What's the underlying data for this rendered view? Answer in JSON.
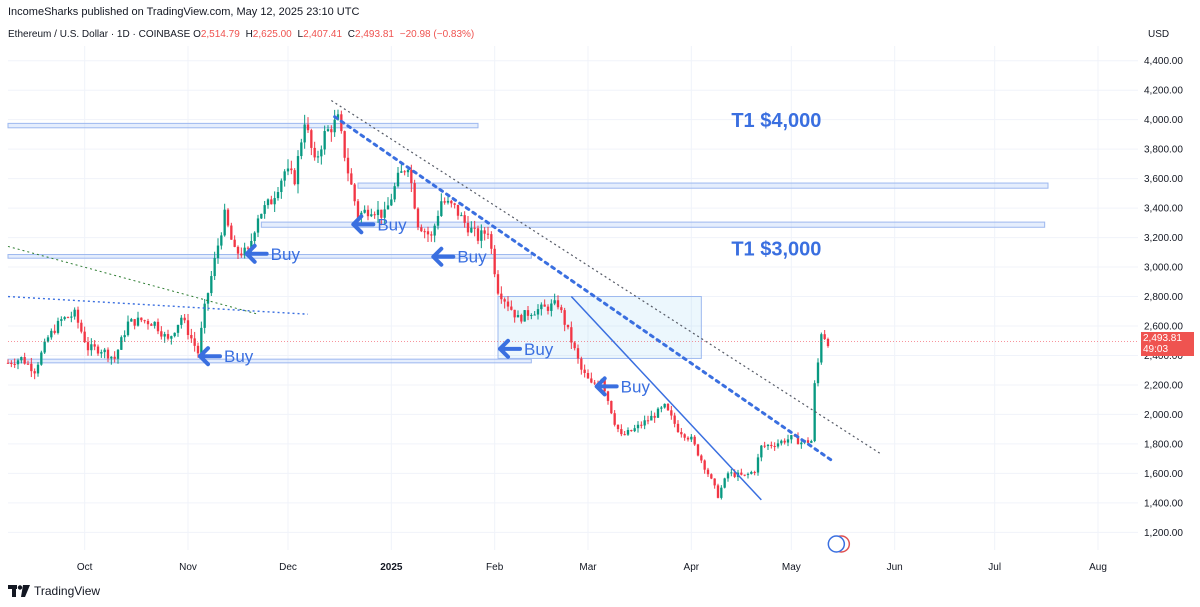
{
  "publisher": "IncomeSharks published on TradingView.com, May 12, 2025 23:10 UTC",
  "legend": {
    "symbol": "Ethereum / U.S. Dollar · 1D · COINBASE",
    "o_label": "O",
    "o": "2,514.79",
    "h_label": "H",
    "h": "2,625.00",
    "l_label": "L",
    "l": "2,407.41",
    "c_label": "C",
    "c": "2,493.81",
    "change": "−20.98 (−0.83%)"
  },
  "currency": "USD",
  "brand": "TradingView",
  "last_price_tag": {
    "price": "2,493.81",
    "countdown": "49:03"
  },
  "colors": {
    "up": "#089981",
    "down": "#f23645",
    "annotation": "#3a6fe0",
    "zone": "#cfe0fb",
    "grid": "#f0f3fa"
  },
  "chart_data": {
    "type": "candlestick",
    "y_axis": {
      "ticks": [
        1200,
        1400,
        1600,
        1800,
        2000,
        2200,
        2400,
        2600,
        2800,
        3000,
        3200,
        3400,
        3600,
        3800,
        4000,
        4200,
        4400
      ],
      "tick_labels": [
        "1,200.00",
        "1,400.00",
        "1,600.00",
        "1,800.00",
        "2,000.00",
        "2,200.00",
        "2,400.00",
        "2,600.00",
        "2,800.00",
        "3,000.00",
        "3,200.00",
        "3,400.00",
        "3,600.00",
        "3,800.00",
        "4,000.00",
        "4,200.00",
        "4,400.00"
      ],
      "range": [
        1080,
        4500
      ]
    },
    "x_axis": {
      "labels": [
        "Oct",
        "Nov",
        "Dec",
        "2025",
        "Feb",
        "Mar",
        "Apr",
        "May",
        "Jun",
        "Jul",
        "Aug"
      ],
      "label_dates": [
        "2024-10-01",
        "2024-11-01",
        "2024-12-01",
        "2025-01-01",
        "2025-02-01",
        "2025-03-01",
        "2025-04-01",
        "2025-05-01",
        "2025-06-01",
        "2025-07-01",
        "2025-08-01"
      ],
      "bold": [
        "2025"
      ],
      "range": [
        "2024-09-08",
        "2025-08-13"
      ]
    },
    "price_path": [
      [
        "2024-09-08",
        2350
      ],
      [
        "2024-09-12",
        2380
      ],
      [
        "2024-09-16",
        2300
      ],
      [
        "2024-09-20",
        2520
      ],
      [
        "2024-09-24",
        2640
      ],
      [
        "2024-09-28",
        2680
      ],
      [
        "2024-10-02",
        2450
      ],
      [
        "2024-10-06",
        2440
      ],
      [
        "2024-10-10",
        2380
      ],
      [
        "2024-10-14",
        2620
      ],
      [
        "2024-10-18",
        2640
      ],
      [
        "2024-10-22",
        2620
      ],
      [
        "2024-10-26",
        2500
      ],
      [
        "2024-10-30",
        2660
      ],
      [
        "2024-11-04",
        2420
      ],
      [
        "2024-11-06",
        2720
      ],
      [
        "2024-11-10",
        3150
      ],
      [
        "2024-11-12",
        3350
      ],
      [
        "2024-11-15",
        3100
      ],
      [
        "2024-11-19",
        3100
      ],
      [
        "2024-11-22",
        3350
      ],
      [
        "2024-11-26",
        3450
      ],
      [
        "2024-11-30",
        3650
      ],
      [
        "2024-12-03",
        3600
      ],
      [
        "2024-12-06",
        4000
      ],
      [
        "2024-12-09",
        3700
      ],
      [
        "2024-12-12",
        3900
      ],
      [
        "2024-12-16",
        4000
      ],
      [
        "2024-12-19",
        3650
      ],
      [
        "2024-12-22",
        3350
      ],
      [
        "2024-12-26",
        3400
      ],
      [
        "2024-12-30",
        3350
      ],
      [
        "2025-01-03",
        3600
      ],
      [
        "2025-01-06",
        3700
      ],
      [
        "2025-01-09",
        3300
      ],
      [
        "2025-01-13",
        3200
      ],
      [
        "2025-01-16",
        3450
      ],
      [
        "2025-01-20",
        3400
      ],
      [
        "2025-01-23",
        3300
      ],
      [
        "2025-01-27",
        3200
      ],
      [
        "2025-01-30",
        3250
      ],
      [
        "2025-02-02",
        2850
      ],
      [
        "2025-02-05",
        2750
      ],
      [
        "2025-02-08",
        2650
      ],
      [
        "2025-02-12",
        2700
      ],
      [
        "2025-02-16",
        2720
      ],
      [
        "2025-02-20",
        2750
      ],
      [
        "2025-02-24",
        2500
      ],
      [
        "2025-02-27",
        2300
      ],
      [
        "2025-03-02",
        2200
      ],
      [
        "2025-03-05",
        2250
      ],
      [
        "2025-03-09",
        1950
      ],
      [
        "2025-03-11",
        1850
      ],
      [
        "2025-03-15",
        1900
      ],
      [
        "2025-03-20",
        1980
      ],
      [
        "2025-03-24",
        2050
      ],
      [
        "2025-03-28",
        1900
      ],
      [
        "2025-04-01",
        1830
      ],
      [
        "2025-04-06",
        1600
      ],
      [
        "2025-04-09",
        1450
      ],
      [
        "2025-04-12",
        1600
      ],
      [
        "2025-04-17",
        1580
      ],
      [
        "2025-04-20",
        1620
      ],
      [
        "2025-04-22",
        1780
      ],
      [
        "2025-04-26",
        1800
      ],
      [
        "2025-05-01",
        1840
      ],
      [
        "2025-05-04",
        1810
      ],
      [
        "2025-05-07",
        1820
      ],
      [
        "2025-05-08",
        2200
      ],
      [
        "2025-05-09",
        2350
      ],
      [
        "2025-05-10",
        2560
      ],
      [
        "2025-05-12",
        2494
      ]
    ],
    "last_price": 2493.81,
    "last_price_label": "2,493.81",
    "annotations": {
      "texts": [
        {
          "text": "T1 $4,000",
          "date": "2025-04-01",
          "price": 3950
        },
        {
          "text": "T1 $3,000",
          "date": "2025-04-01",
          "price": 3080
        }
      ],
      "buy_labels": [
        {
          "text": "Buy",
          "date": "2024-11-04",
          "price": 2395
        },
        {
          "text": "Buy",
          "date": "2024-11-18",
          "price": 3090
        },
        {
          "text": "Buy",
          "date": "2024-12-20",
          "price": 3290
        },
        {
          "text": "Buy",
          "date": "2025-01-13",
          "price": 3070
        },
        {
          "text": "Buy",
          "date": "2025-02-02",
          "price": 2445
        },
        {
          "text": "Buy",
          "date": "2025-03-03",
          "price": 2190
        }
      ],
      "horizontal_zones": [
        {
          "start": "2024-09-08",
          "end": "2025-01-27",
          "top": 3975,
          "bottom": 3945
        },
        {
          "start": "2024-12-22",
          "end": "2025-07-17",
          "top": 3570,
          "bottom": 3535
        },
        {
          "start": "2024-11-23",
          "end": "2025-07-16",
          "top": 3305,
          "bottom": 3270
        },
        {
          "start": "2024-09-08",
          "end": "2025-02-12",
          "top": 3085,
          "bottom": 3060
        },
        {
          "start": "2024-09-08",
          "end": "2025-02-12",
          "top": 2375,
          "bottom": 2350
        },
        {
          "start": "2025-02-02",
          "end": "2025-04-04",
          "top": 2800,
          "bottom": 2380
        }
      ],
      "trendlines": [
        {
          "style": "dotted-dark",
          "from": [
            "2024-12-14",
            4130
          ],
          "to": [
            "2025-05-28",
            1730
          ]
        },
        {
          "style": "dotted-blue",
          "from": [
            "2024-12-15",
            4020
          ],
          "to": [
            "2025-05-13",
            1690
          ]
        },
        {
          "style": "solid-blue",
          "from": [
            "2025-02-24",
            2800
          ],
          "to": [
            "2025-04-22",
            1420
          ]
        },
        {
          "style": "dotted-green",
          "from": [
            "2024-09-08",
            3140
          ],
          "to": [
            "2024-11-22",
            2680
          ]
        },
        {
          "style": "dotted-blue-curve",
          "from": [
            "2024-09-08",
            2800
          ],
          "to": [
            "2024-12-07",
            2680
          ]
        }
      ]
    }
  }
}
